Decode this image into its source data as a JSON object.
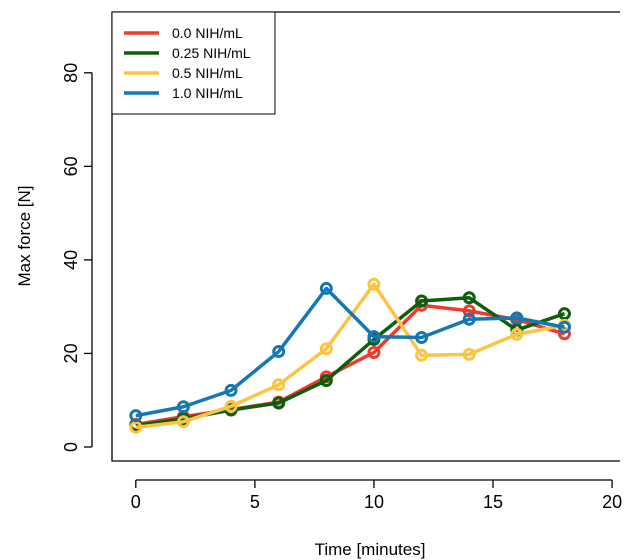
{
  "chart_data": {
    "type": "line",
    "title": "",
    "xlabel": "Time [minutes]",
    "ylabel": "Max force [N]",
    "xlim": [
      -1,
      20.5
    ],
    "ylim": [
      -3,
      93
    ],
    "x_ticks": [
      "0",
      "5",
      "10",
      "15",
      "20"
    ],
    "y_ticks": [
      "0",
      "20",
      "40",
      "60",
      "80"
    ],
    "grid": false,
    "legend_position": "top-left",
    "x": [
      0,
      2,
      4,
      6,
      8,
      10,
      12,
      14,
      16,
      18
    ],
    "series": [
      {
        "name": "0.0 NIH/mL",
        "color": "#EE3A2F",
        "values": [
          4.8,
          6.5,
          8.0,
          9.6,
          15.0,
          20.2,
          30.3,
          29.1,
          27.2,
          24.2
        ]
      },
      {
        "name": "0.25 NIH/mL",
        "color": "#0B5E0B",
        "values": [
          4.6,
          6.0,
          7.9,
          9.4,
          14.2,
          23.0,
          31.2,
          31.9,
          25.0,
          28.5
        ]
      },
      {
        "name": "0.5 NIH/mL",
        "color": "#FCC443",
        "values": [
          4.2,
          5.4,
          8.7,
          13.3,
          21.0,
          34.8,
          19.6,
          19.8,
          24.1,
          26.0
        ]
      },
      {
        "name": "1.0 NIH/mL",
        "color": "#1478B4",
        "values": [
          6.7,
          8.6,
          12.1,
          20.4,
          33.9,
          23.6,
          23.4,
          27.3,
          27.6,
          25.6
        ]
      }
    ]
  }
}
